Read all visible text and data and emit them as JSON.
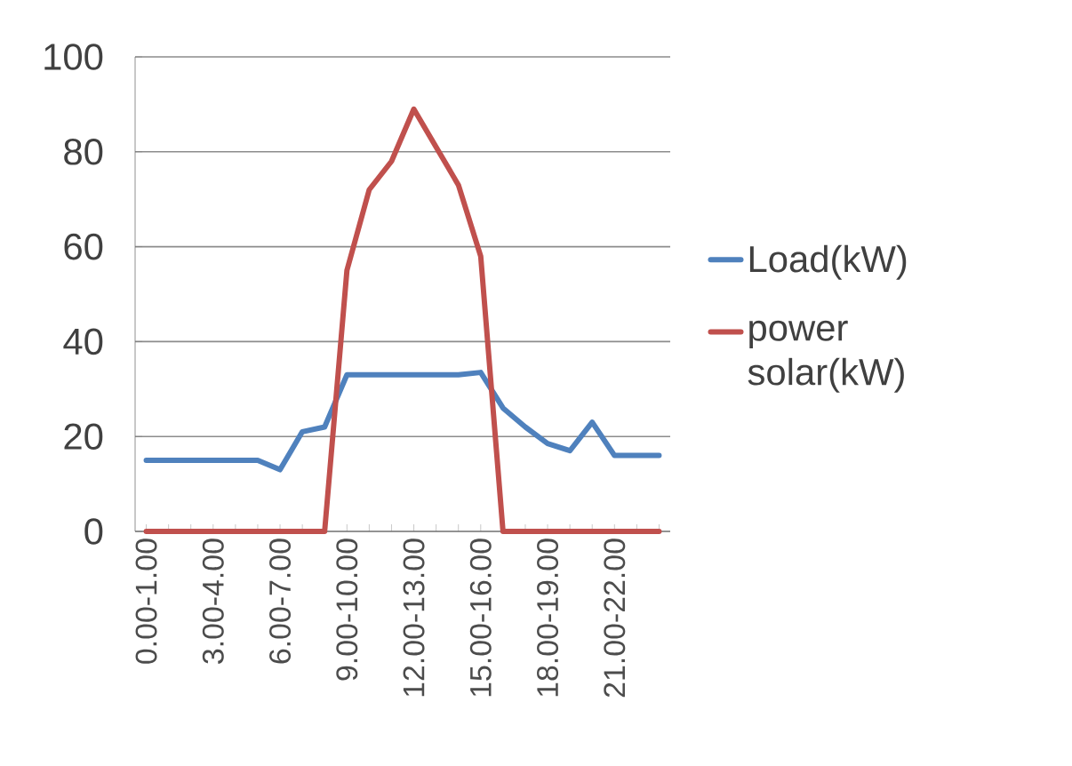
{
  "chart_data": {
    "type": "line",
    "categories": [
      "0.00-1.00",
      null,
      null,
      "3.00-4.00",
      null,
      null,
      "6.00-7.00",
      null,
      null,
      "9.00-10.00",
      null,
      null,
      "12.00-13.00",
      null,
      null,
      "15.00-16.00",
      null,
      null,
      "18.00-19.00",
      null,
      null,
      "21.00-22.00",
      null,
      null
    ],
    "series": [
      {
        "name": "Load(kW)",
        "color": "#4f81bd",
        "values": [
          15,
          15,
          15,
          15,
          15,
          15,
          13,
          21,
          22,
          33,
          33,
          33,
          33,
          33,
          33,
          33.5,
          26,
          22,
          18.5,
          17,
          23,
          16,
          16,
          16
        ]
      },
      {
        "name": "power solar(kW)",
        "color": "#c0504d",
        "values": [
          0,
          0,
          0,
          0,
          0,
          0,
          0,
          0,
          0,
          55,
          72,
          78,
          89,
          81,
          73,
          58,
          0,
          0,
          0,
          0,
          0,
          0,
          0,
          0
        ]
      }
    ],
    "ylim": [
      0,
      100
    ],
    "yticks": [
      0,
      20,
      40,
      60,
      80,
      100
    ],
    "grid": "y",
    "legend": "right",
    "marker": "none",
    "line_style": "solid"
  }
}
